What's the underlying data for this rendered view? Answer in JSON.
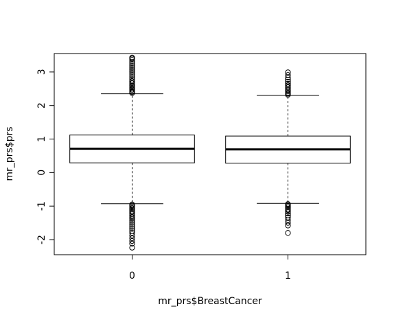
{
  "chart_data": {
    "type": "boxplot",
    "title": "",
    "xlabel": "mr_prs$BreastCancer",
    "ylabel": "mr_prs$prs",
    "categories": [
      "0",
      "1"
    ],
    "ylim": [
      -2.45,
      3.55
    ],
    "yticks": [
      -2,
      -1,
      0,
      1,
      2,
      3
    ],
    "ytick_labels": [
      "-2",
      "-1",
      "0",
      "1",
      "2",
      "3"
    ],
    "grid": false,
    "legend": "none",
    "boxes": [
      {
        "category": "0",
        "whisker_low": -0.93,
        "q1": 0.29,
        "median": 0.71,
        "q3": 1.12,
        "whisker_high": 2.35,
        "outliers_high": [
          2.37,
          2.4,
          2.43,
          2.47,
          2.51,
          2.55,
          2.59,
          2.63,
          2.67,
          2.72,
          2.77,
          2.82,
          2.88,
          2.94,
          3.0,
          3.06,
          3.12,
          3.18,
          3.24,
          3.3,
          3.36,
          3.4,
          3.43
        ],
        "outliers_low": [
          -0.95,
          -0.98,
          -1.02,
          -1.06,
          -1.1,
          -1.14,
          -1.18,
          -1.23,
          -1.28,
          -1.33,
          -1.38,
          -1.44,
          -1.5,
          -1.56,
          -1.62,
          -1.68,
          -1.74,
          -1.8,
          -1.88,
          -1.96,
          -2.04,
          -2.12,
          -2.24
        ]
      },
      {
        "category": "1",
        "whisker_low": -0.92,
        "q1": 0.28,
        "median": 0.69,
        "q3": 1.09,
        "whisker_high": 2.3,
        "outliers_high": [
          2.32,
          2.35,
          2.38,
          2.42,
          2.46,
          2.5,
          2.55,
          2.6,
          2.65,
          2.71,
          2.77,
          2.83,
          2.91,
          2.99
        ],
        "outliers_low": [
          -0.94,
          -0.97,
          -1.0,
          -1.04,
          -1.08,
          -1.12,
          -1.17,
          -1.22,
          -1.28,
          -1.34,
          -1.42,
          -1.5,
          -1.58,
          -1.8
        ]
      }
    ],
    "colors": {
      "box": "#000000",
      "background": "#ffffff"
    }
  }
}
